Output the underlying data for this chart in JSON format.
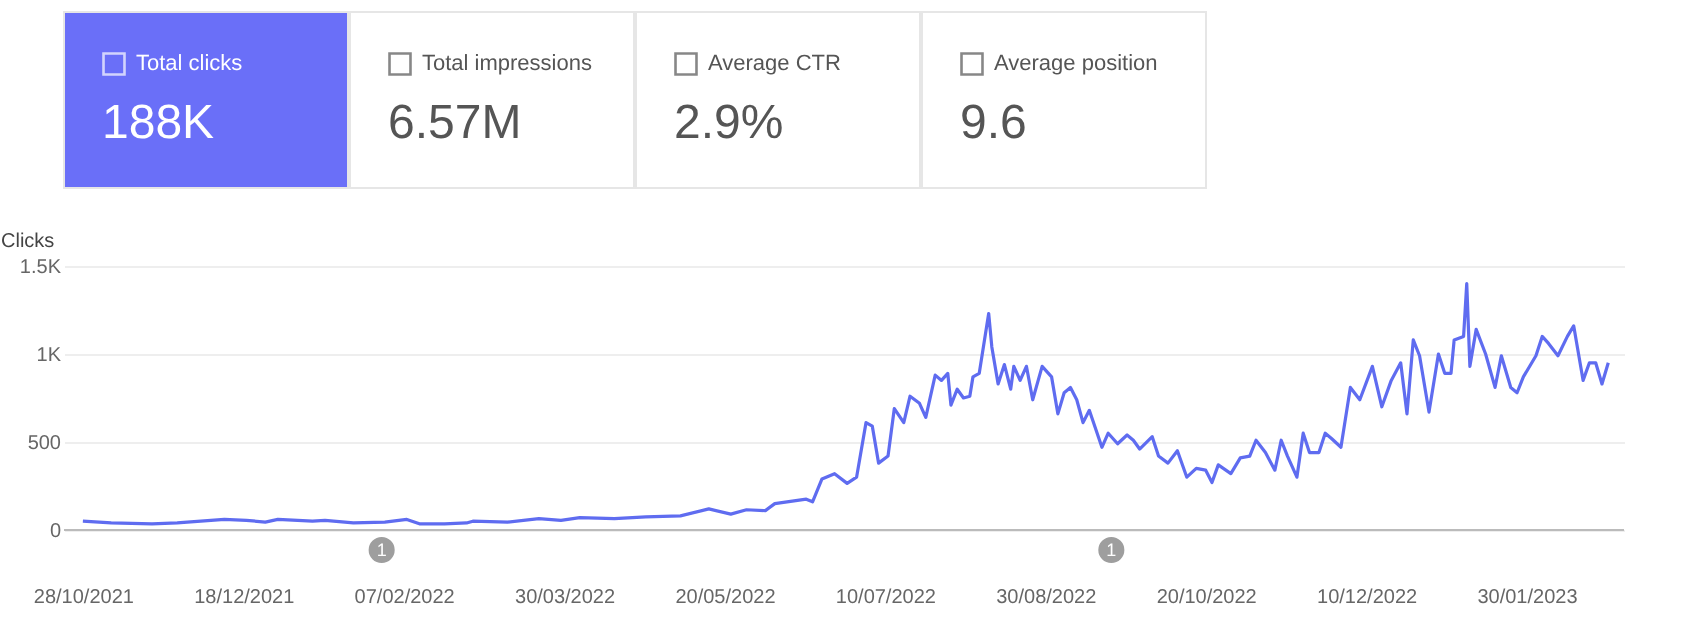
{
  "chart_data": [
    {
      "type": "other",
      "annotations": [
        "Total clicks",
        "188K",
        "Total impressions",
        "6.57M",
        "Average CTR",
        "2.9%",
        "Average position",
        "9.6"
      ]
    },
    {
      "type": "line",
      "ylabel": "Clicks",
      "color": "#5f6cf0",
      "grid": "y",
      "line_style": "solid",
      "marker": "none",
      "xlim": [
        "2021-10-22",
        "2023-03-02"
      ],
      "ylim": [
        0,
        1500
      ],
      "yticks": [
        0,
        500,
        {
          "value": 1000,
          "label": "1K"
        },
        {
          "value": 1500,
          "label": "1.5K"
        }
      ],
      "xticks": [
        {
          "value": "2021-10-28",
          "label": "28/10/2021"
        },
        {
          "value": "2021-12-18",
          "label": "18/12/2021"
        },
        {
          "value": "2022-02-07",
          "label": "07/02/2022"
        },
        {
          "value": "2022-03-30",
          "label": "30/03/2022"
        },
        {
          "value": "2022-05-20",
          "label": "20/05/2022"
        },
        {
          "value": "2022-07-10",
          "label": "10/07/2022"
        },
        {
          "value": "2022-08-30",
          "label": "30/08/2022"
        },
        {
          "value": "2022-10-20",
          "label": "20/10/2022"
        },
        {
          "value": "2022-12-10",
          "label": "10/12/2022"
        },
        {
          "value": "2023-01-30",
          "label": "30/01/2023"
        }
      ],
      "annotations": [
        {
          "text": "1",
          "x": "2022-01-31"
        },
        {
          "text": "1",
          "x": "2022-09-20"
        }
      ],
      "x": [
        "2021-10-28",
        "2021-11-06",
        "2021-11-19",
        "2021-11-27",
        "2021-12-12",
        "2021-12-19",
        "2021-12-25",
        "2021-12-29",
        "2022-01-09",
        "2022-01-13",
        "2022-01-22",
        "2022-02-01",
        "2022-02-08",
        "2022-02-12",
        "2022-02-20",
        "2022-02-27",
        "2022-03-01",
        "2022-03-12",
        "2022-03-22",
        "2022-03-29",
        "2022-04-04",
        "2022-04-15",
        "2022-04-25",
        "2022-05-06",
        "2022-05-15",
        "2022-05-22",
        "2022-05-27",
        "2022-06-02",
        "2022-06-05",
        "2022-06-15",
        "2022-06-17",
        "2022-06-20",
        "2022-06-24",
        "2022-06-28",
        "2022-07-01",
        "2022-07-04",
        "2022-07-06",
        "2022-07-08",
        "2022-07-11",
        "2022-07-13",
        "2022-07-16",
        "2022-07-18",
        "2022-07-21",
        "2022-07-23",
        "2022-07-26",
        "2022-07-28",
        "2022-07-30",
        "2022-07-31",
        "2022-08-02",
        "2022-08-04",
        "2022-08-06",
        "2022-08-07",
        "2022-08-09",
        "2022-08-12",
        "2022-08-13",
        "2022-08-15",
        "2022-08-17",
        "2022-08-19",
        "2022-08-20",
        "2022-08-22",
        "2022-08-24",
        "2022-08-26",
        "2022-08-29",
        "2022-09-01",
        "2022-09-03",
        "2022-09-05",
        "2022-09-07",
        "2022-09-09",
        "2022-09-11",
        "2022-09-13",
        "2022-09-17",
        "2022-09-19",
        "2022-09-22",
        "2022-09-25",
        "2022-09-27",
        "2022-09-29",
        "2022-10-03",
        "2022-10-05",
        "2022-10-08",
        "2022-10-11",
        "2022-10-14",
        "2022-10-17",
        "2022-10-20",
        "2022-10-22",
        "2022-10-24",
        "2022-10-28",
        "2022-10-31",
        "2022-11-03",
        "2022-11-05",
        "2022-11-08",
        "2022-11-11",
        "2022-11-13",
        "2022-11-15",
        "2022-11-18",
        "2022-11-20",
        "2022-11-22",
        "2022-11-25",
        "2022-11-27",
        "2022-11-29",
        "2022-12-02",
        "2022-12-05",
        "2022-12-08",
        "2022-12-12",
        "2022-12-15",
        "2022-12-18",
        "2022-12-21",
        "2022-12-23",
        "2022-12-25",
        "2022-12-27",
        "2022-12-30",
        "2023-01-02",
        "2023-01-04",
        "2023-01-06",
        "2023-01-07",
        "2023-01-10",
        "2023-01-11",
        "2023-01-12",
        "2023-01-14",
        "2023-01-17",
        "2023-01-20",
        "2023-01-22",
        "2023-01-25",
        "2023-01-27",
        "2023-01-29",
        "2023-02-02",
        "2023-02-04",
        "2023-02-06",
        "2023-02-09",
        "2023-02-12",
        "2023-02-14",
        "2023-02-17",
        "2023-02-19",
        "2023-02-21",
        "2023-02-23",
        "2023-02-25"
      ],
      "values": [
        50,
        40,
        35,
        40,
        60,
        55,
        45,
        60,
        50,
        55,
        40,
        45,
        60,
        35,
        35,
        40,
        50,
        45,
        65,
        55,
        70,
        65,
        75,
        80,
        120,
        90,
        115,
        110,
        150,
        175,
        160,
        290,
        320,
        265,
        300,
        610,
        590,
        380,
        420,
        690,
        610,
        760,
        720,
        640,
        880,
        850,
        890,
        710,
        800,
        750,
        760,
        870,
        890,
        1230,
        1040,
        830,
        940,
        800,
        930,
        850,
        930,
        740,
        930,
        870,
        660,
        780,
        810,
        740,
        610,
        680,
        470,
        550,
        490,
        540,
        510,
        460,
        530,
        420,
        380,
        450,
        300,
        350,
        340,
        270,
        370,
        320,
        410,
        420,
        510,
        440,
        340,
        510,
        420,
        300,
        550,
        440,
        440,
        550,
        520,
        470,
        810,
        740,
        930,
        700,
        850,
        950,
        660,
        1080,
        990,
        670,
        1000,
        890,
        890,
        1080,
        1100,
        1400,
        930,
        1140,
        1000,
        810,
        990,
        810,
        780,
        870,
        990,
        1100,
        1060,
        990,
        1100,
        1160,
        850,
        950,
        950,
        830,
        950
      ]
    }
  ]
}
